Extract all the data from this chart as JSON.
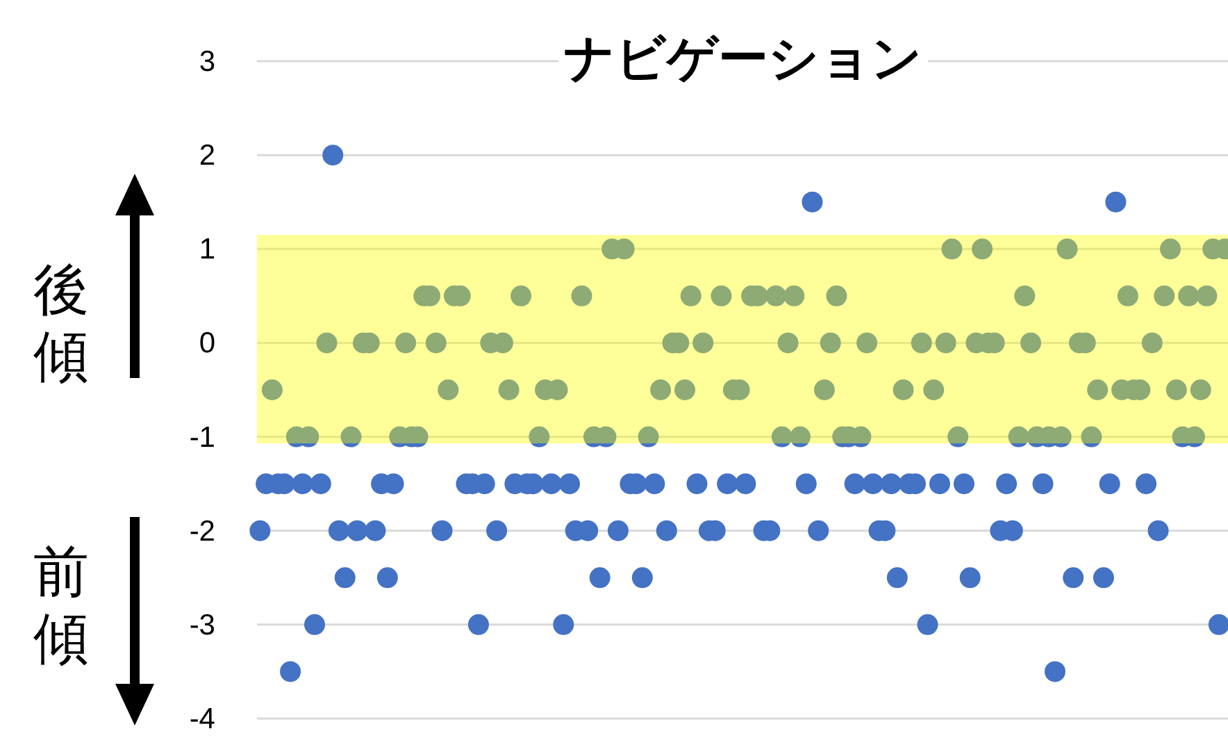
{
  "chart_data": {
    "type": "scatter",
    "title": "ナビゲーション",
    "annotations": [
      "後傾",
      "前傾"
    ],
    "categories": [
      null,
      null,
      null,
      null,
      null,
      null,
      null,
      null,
      null,
      null,
      null,
      null,
      null,
      null,
      null,
      null,
      null,
      null,
      null,
      null,
      null,
      null,
      null,
      null,
      null,
      null,
      null,
      null,
      null,
      null,
      null,
      null,
      null,
      null,
      null,
      null,
      null,
      null,
      null,
      null,
      null,
      null,
      null,
      null,
      null,
      null,
      null,
      null,
      null,
      null,
      null,
      null,
      null,
      null,
      null,
      null,
      null,
      null,
      null,
      null,
      null,
      null,
      null,
      null,
      null,
      null,
      null,
      null,
      null,
      null,
      null,
      null,
      null,
      null,
      null,
      null,
      null,
      null,
      null,
      null,
      null,
      null,
      null,
      null,
      null,
      null,
      null,
      null,
      null,
      null,
      null,
      null,
      null,
      null,
      null,
      null,
      null,
      null,
      null,
      null,
      null,
      null,
      null,
      null,
      null,
      null,
      null,
      null,
      null,
      null,
      null,
      null,
      null,
      null,
      null,
      null,
      null,
      null,
      null,
      null,
      null,
      null,
      null,
      null,
      null,
      null,
      null,
      null,
      null,
      null,
      null,
      null,
      null,
      null,
      null,
      null,
      null,
      null,
      null,
      null,
      null,
      null,
      null,
      null,
      null,
      null,
      null,
      null,
      null,
      null,
      null,
      null,
      null,
      null,
      null,
      null,
      null,
      null,
      null,
      null
    ],
    "series": [
      {
        "color": "#4472c4",
        "values": [
          -2,
          -1.5,
          -0.5,
          -1.5,
          -1.5,
          -3.5,
          -1,
          -1.5,
          -1,
          -3,
          -1.5,
          0,
          2,
          -2,
          -2.5,
          -1,
          -2,
          0,
          0,
          -2,
          -1.5,
          -2.5,
          -1.5,
          -1,
          0,
          -1,
          -1,
          0.5,
          0.5,
          0,
          -2,
          -0.5,
          0.5,
          0.5,
          -1.5,
          -1.5,
          -3,
          -1.5,
          0,
          -2,
          0,
          -0.5,
          -1.5,
          0.5,
          -1.5,
          -1.5,
          -1,
          -0.5,
          -1.5,
          -0.5,
          -3,
          -1.5,
          -2,
          0.5,
          -2,
          -1,
          -2.5,
          -1,
          1,
          -2,
          1,
          -1.5,
          -1.5,
          -2.5,
          -1,
          -1.5,
          -0.5,
          -2,
          0,
          0,
          -0.5,
          0.5,
          -1.5,
          0,
          -2,
          -2,
          0.5,
          -1.5,
          -0.5,
          -0.5,
          -1.5,
          0.5,
          0.5,
          -2,
          -2,
          0.5,
          -1,
          0,
          0.5,
          -1,
          -1.5,
          1.5,
          -2,
          -0.5,
          0,
          0.5,
          -1,
          -1,
          -1.5,
          -1,
          0,
          -1.5,
          -2,
          -2,
          -1.5,
          -2.5,
          -0.5,
          -1.5,
          -1.5,
          0,
          -3,
          -0.5,
          -1.5,
          0,
          1,
          -1,
          -1.5,
          -2.5,
          0,
          1,
          0,
          0,
          -2,
          -1.5,
          -2,
          -1,
          0.5,
          0,
          -1,
          -1.5,
          -1,
          -3.5,
          -1,
          1,
          -2.5,
          0,
          0,
          -1,
          -0.5,
          -2.5,
          -1.5,
          1.5,
          -0.5,
          0.5,
          -0.5,
          -0.5,
          -1.5,
          0,
          -2,
          0.5,
          1,
          -0.5,
          -1,
          0.5,
          -1,
          -0.5,
          0.5,
          1,
          -3,
          1
        ]
      }
    ],
    "marker": "circle",
    "ylim": [
      -4,
      3
    ],
    "yticks": [
      -4,
      -3,
      -2,
      -1,
      0,
      1,
      2,
      3
    ],
    "grid": "y",
    "bands": [
      {
        "axis": "y",
        "from": -1.07,
        "to": 1.15,
        "color": "#ffff00"
      }
    ]
  }
}
